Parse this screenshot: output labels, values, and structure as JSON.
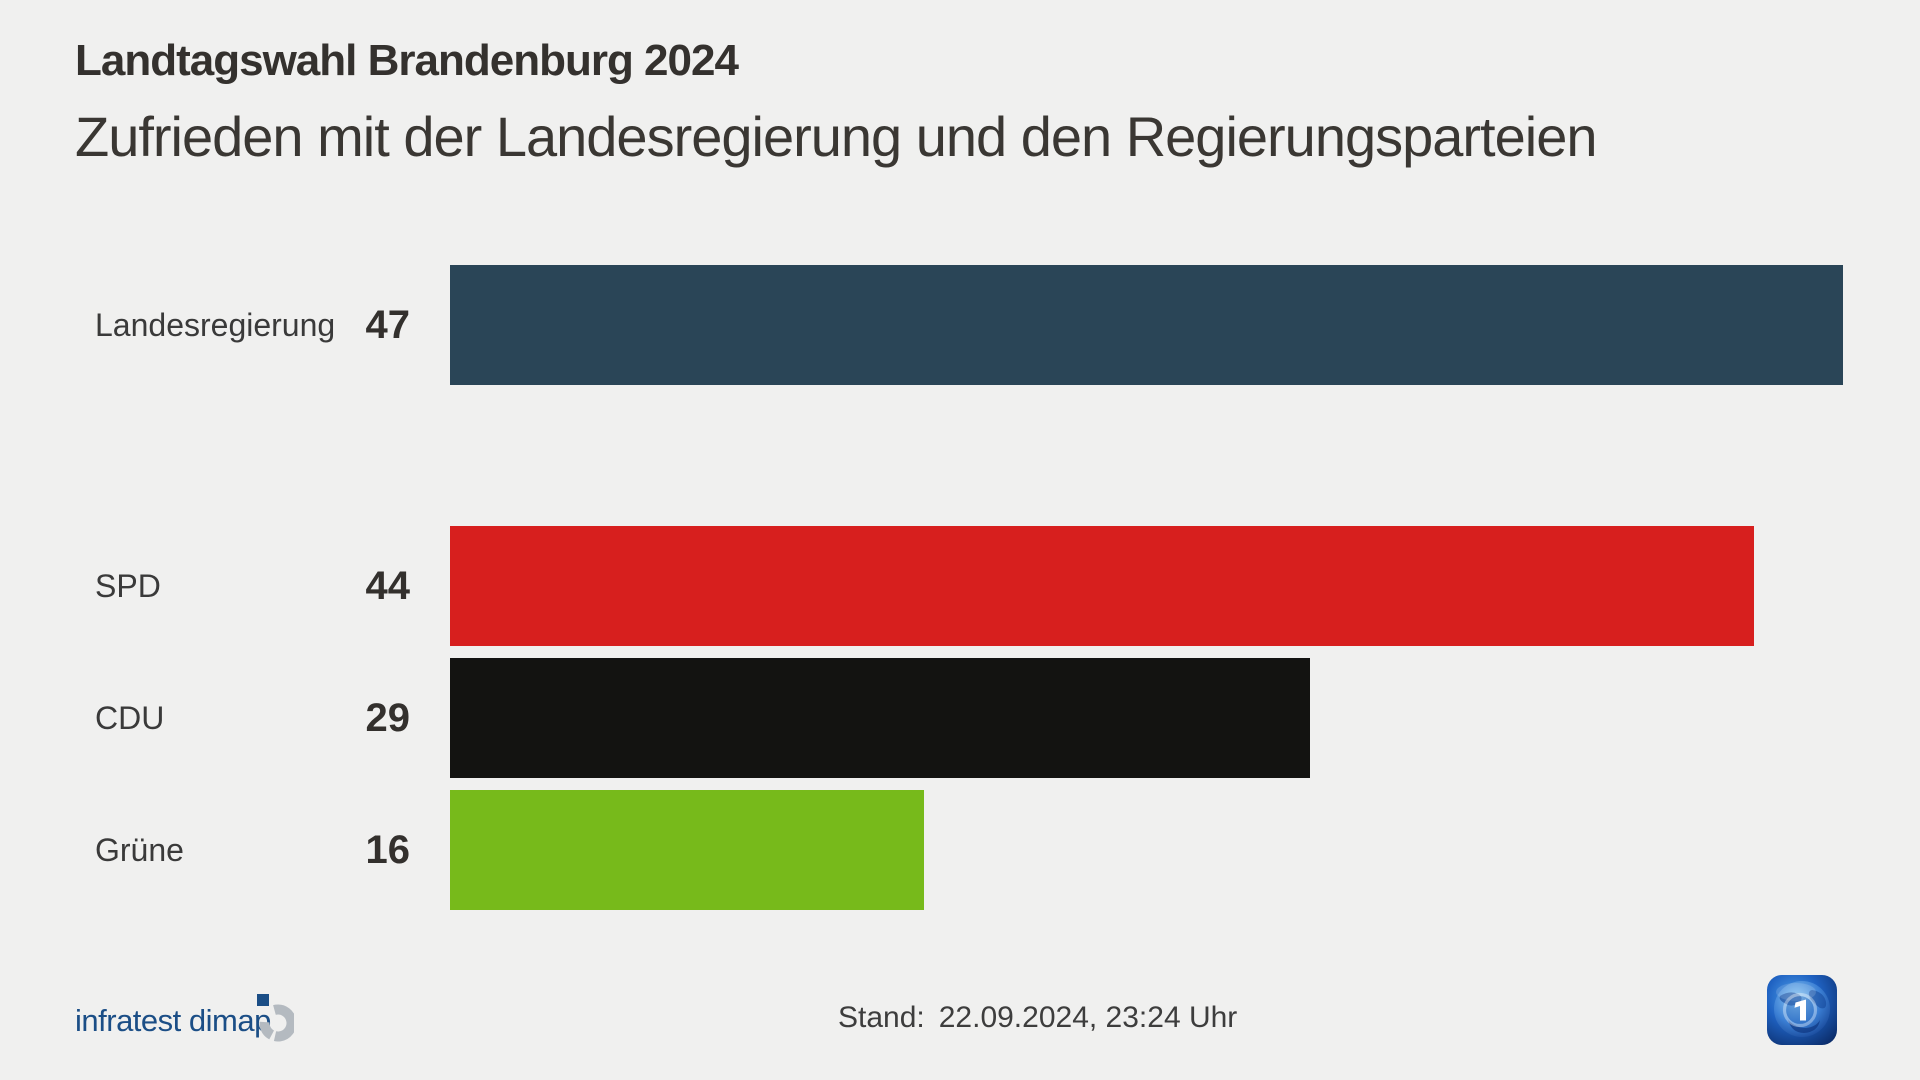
{
  "page": {
    "background_color": "#f0f0ef"
  },
  "header": {
    "kicker": "Landtagswahl Brandenburg 2024",
    "title": "Zufrieden mit der Landesregierung und den Regierungsparteien"
  },
  "chart_data": {
    "type": "bar",
    "orientation": "horizontal",
    "kicker": "Landtagswahl Brandenburg 2024",
    "title": "Zufrieden mit der Landesregierung und den Regierungsparteien",
    "categories": [
      "Landesregierung",
      "SPD",
      "CDU",
      "Grüne"
    ],
    "values": [
      47,
      44,
      29,
      16
    ],
    "value_labels": [
      "47",
      "44",
      "29",
      "16"
    ],
    "bar_colors": [
      "#2a4557",
      "#d71f1e",
      "#131311",
      "#77ba1b"
    ],
    "xlim": [
      0,
      47
    ],
    "grid": false,
    "legend": false,
    "group_break_after_index": 0
  },
  "footer": {
    "brand": "infratest dimap",
    "brand_color": "#1b4e86",
    "brand_mark_icon": "infratest-dimap-mark-icon",
    "stand_label": "Stand:",
    "stand_value": "22.09.2024, 23:24 Uhr",
    "ard_logo_icon": "ard-globe-logo-icon"
  }
}
